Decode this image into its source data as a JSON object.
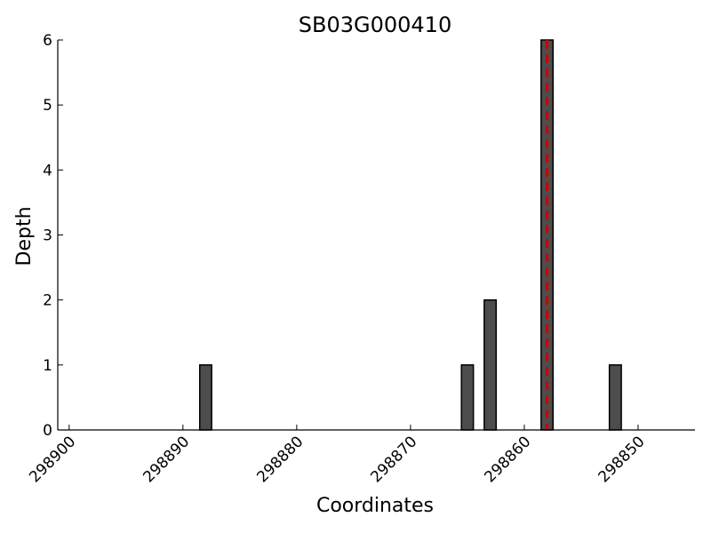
{
  "chart_data": {
    "type": "bar",
    "title": "SB03G000410",
    "xlabel": "Coordinates",
    "ylabel": "Depth",
    "x_reversed": true,
    "xlim": [
      298901,
      298845
    ],
    "ylim": [
      0,
      6
    ],
    "xticks": [
      298900,
      298890,
      298880,
      298870,
      298860,
      298850
    ],
    "yticks": [
      0,
      1,
      2,
      3,
      4,
      5,
      6
    ],
    "bar_color": "#4d4d4d",
    "bars": [
      {
        "x": 298888,
        "value": 1
      },
      {
        "x": 298865,
        "value": 1
      },
      {
        "x": 298863,
        "value": 2
      },
      {
        "x": 298858,
        "value": 6
      },
      {
        "x": 298852,
        "value": 1
      }
    ],
    "marker_line": {
      "x": 298858,
      "color": "#cc0000",
      "style": "dashed"
    },
    "grid": false,
    "legend": "none"
  }
}
